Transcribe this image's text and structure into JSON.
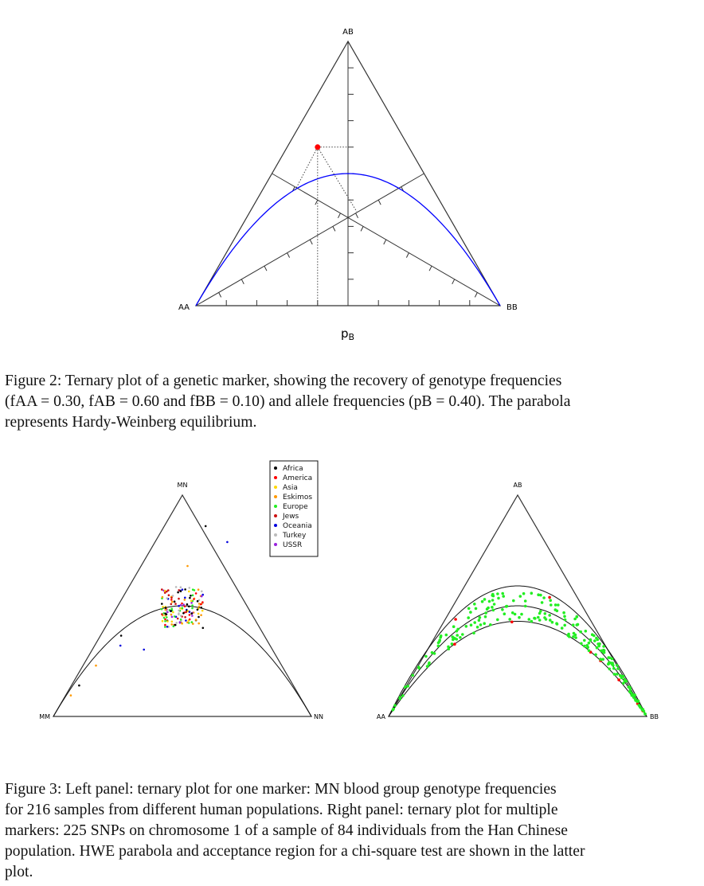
{
  "figure2": {
    "vertex_top": "AB",
    "vertex_left": "AA",
    "vertex_right": "BB",
    "axis_label": "pB",
    "axis_label_main": "p",
    "axis_label_sub": "B",
    "point": {
      "fAA": 0.3,
      "fAB": 0.6,
      "fBB": 0.1,
      "pB": 0.4
    },
    "colors": {
      "triangle": "#333333",
      "parabola": "#0000ff",
      "point": "#ff0000"
    },
    "caption": {
      "label": "Figure 2:",
      "text_1": "Ternary plot of a genetic marker, showing the recovery of genotype frequencies",
      "text_2": "(f",
      "line2": "(fAA = 0.30, fAB = 0.60 and fBB = 0.10) and allele frequencies (pB = 0.40).  The parabola",
      "line3": "represents Hardy-Weinberg equilibrium."
    }
  },
  "figure3": {
    "left": {
      "vertex_top": "MN",
      "vertex_left": "MM",
      "vertex_right": "NN",
      "legend": [
        {
          "label": "Africa",
          "color": "#000000"
        },
        {
          "label": "America",
          "color": "#ff0000"
        },
        {
          "label": "Asia",
          "color": "#ffd700"
        },
        {
          "label": "Eskimos",
          "color": "#ff9900"
        },
        {
          "label": "Europe",
          "color": "#22ee22"
        },
        {
          "label": "Jews",
          "color": "#cc1111"
        },
        {
          "label": "Oceania",
          "color": "#0000dd"
        },
        {
          "label": "Turkey",
          "color": "#bbbbbb"
        },
        {
          "label": "USSR",
          "color": "#9922dd"
        }
      ]
    },
    "right": {
      "vertex_top": "AB",
      "vertex_left": "AA",
      "vertex_right": "BB",
      "colors": {
        "inside": "#22ee22",
        "outside": "#ff0000"
      }
    },
    "caption": {
      "line1_label": "Figure 3:",
      "line1": "Left panel:  ternary plot for one marker:",
      "line1_sc": "MN",
      "line1_end": "blood group genotype frequencies",
      "line2": "for 216 samples from different human populations.  Right panel:  ternary plot for multiple",
      "line3": "markers:  225 SNPs on chromosome 1 of a sample of 84 individuals from the Han Chinese",
      "line4": "population. HWE parabola and acceptance region for a chi-square test are shown in the latter",
      "line5": "plot."
    }
  }
}
